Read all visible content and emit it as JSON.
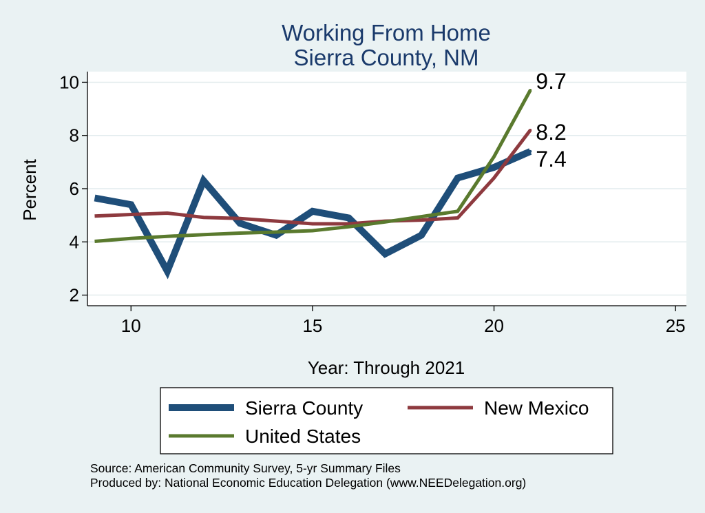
{
  "chart_data": {
    "type": "line",
    "title": [
      "Working From Home",
      "Sierra County, NM"
    ],
    "xlabel": "Year: Through 2021",
    "ylabel": "Percent",
    "xlim": [
      8.8,
      25.3
    ],
    "ylim": [
      1.6,
      10.4
    ],
    "xticks": [
      10,
      15,
      20,
      25
    ],
    "yticks": [
      2,
      4,
      6,
      8,
      10
    ],
    "grid": true,
    "legend_position": "bottom",
    "series": [
      {
        "name": "Sierra County",
        "color": "#1f4e79",
        "width": 10,
        "x": [
          9,
          10,
          11,
          12,
          13,
          14,
          15,
          16,
          17,
          18,
          19,
          20,
          21
        ],
        "y": [
          5.65,
          5.4,
          2.9,
          6.3,
          4.7,
          4.25,
          5.15,
          4.9,
          3.55,
          4.25,
          6.4,
          6.8,
          7.4
        ],
        "end_label": "7.4"
      },
      {
        "name": "New Mexico",
        "color": "#8e3a3f",
        "width": 5,
        "x": [
          9,
          10,
          11,
          12,
          13,
          14,
          15,
          16,
          17,
          18,
          19,
          20,
          21
        ],
        "y": [
          4.97,
          5.03,
          5.08,
          4.92,
          4.88,
          4.78,
          4.68,
          4.68,
          4.78,
          4.82,
          4.9,
          6.4,
          8.2
        ],
        "end_label": "8.2"
      },
      {
        "name": "United States",
        "color": "#5a7a2e",
        "width": 5,
        "x": [
          9,
          10,
          11,
          12,
          13,
          14,
          15,
          16,
          17,
          18,
          19,
          20,
          21
        ],
        "y": [
          4.02,
          4.13,
          4.21,
          4.27,
          4.33,
          4.37,
          4.42,
          4.57,
          4.75,
          4.95,
          5.15,
          7.2,
          9.7
        ],
        "end_label": "9.7"
      }
    ]
  },
  "footnotes": {
    "source": "Source: American Community Survey, 5-yr Summary Files",
    "produced": "Produced by: National Economic Education Delegation (www.NEEDelegation.org)"
  }
}
